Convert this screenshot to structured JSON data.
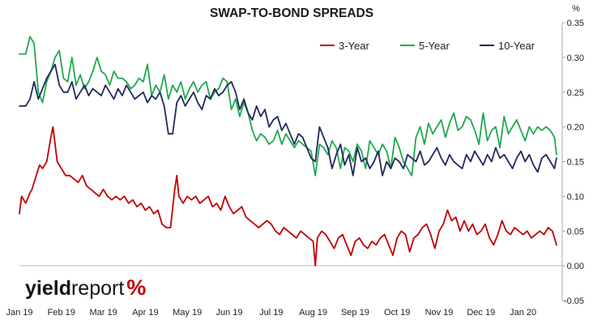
{
  "chart_data": {
    "type": "line",
    "title": "SWAP-TO-BOND SPREADS",
    "unit": "%",
    "xlabel": "",
    "ylabel": "",
    "ylim": [
      -0.05,
      0.35
    ],
    "y_ticks": [
      "0.35",
      "0.30",
      "0.25",
      "0.20",
      "0.15",
      "0.10",
      "0.05",
      "0.00",
      "-0.05"
    ],
    "x_tick_labels": [
      "Jan 19",
      "Feb 19",
      "Mar 19",
      "Apr 19",
      "May 19",
      "Jun 19",
      "Jul 19",
      "Aug 19",
      "Sep 19",
      "Oct 19",
      "Nov 19",
      "Dec 19",
      "Jan 20"
    ],
    "grid": false,
    "legend_position": "top-right",
    "x_unit": "months since Jan 2019",
    "series": [
      {
        "name": "3-Year",
        "color": "#c00000",
        "x": [
          0,
          0.05,
          0.15,
          0.25,
          0.3,
          0.4,
          0.48,
          0.55,
          0.65,
          0.75,
          0.8,
          0.9,
          1,
          1.1,
          1.2,
          1.3,
          1.4,
          1.5,
          1.6,
          1.7,
          1.8,
          1.9,
          2,
          2.1,
          2.2,
          2.3,
          2.4,
          2.5,
          2.6,
          2.7,
          2.8,
          2.9,
          3,
          3.1,
          3.2,
          3.3,
          3.4,
          3.5,
          3.6,
          3.7,
          3.75,
          3.8,
          3.9,
          4,
          4.1,
          4.2,
          4.3,
          4.4,
          4.5,
          4.6,
          4.7,
          4.8,
          4.9,
          5,
          5.1,
          5.2,
          5.3,
          5.4,
          5.5,
          5.6,
          5.7,
          5.8,
          5.9,
          6,
          6.1,
          6.2,
          6.3,
          6.4,
          6.5,
          6.6,
          6.7,
          6.8,
          6.9,
          7,
          7.05,
          7.1,
          7.2,
          7.3,
          7.4,
          7.5,
          7.6,
          7.7,
          7.8,
          7.9,
          8,
          8.1,
          8.2,
          8.3,
          8.4,
          8.5,
          8.6,
          8.7,
          8.8,
          8.9,
          9,
          9.1,
          9.2,
          9.3,
          9.4,
          9.5,
          9.6,
          9.7,
          9.8,
          9.9,
          10,
          10.1,
          10.2,
          10.3,
          10.4,
          10.5,
          10.6,
          10.7,
          10.8,
          10.9,
          11,
          11.1,
          11.2,
          11.3,
          11.4,
          11.5,
          11.6,
          11.7,
          11.8,
          11.9,
          12,
          12.1,
          12.2,
          12.3,
          12.4,
          12.5,
          12.6,
          12.7,
          12.8
        ],
        "values": [
          0.075,
          0.1,
          0.09,
          0.105,
          0.11,
          0.13,
          0.145,
          0.14,
          0.15,
          0.185,
          0.2,
          0.15,
          0.14,
          0.13,
          0.13,
          0.125,
          0.12,
          0.13,
          0.115,
          0.11,
          0.105,
          0.1,
          0.11,
          0.1,
          0.095,
          0.1,
          0.095,
          0.1,
          0.09,
          0.095,
          0.085,
          0.09,
          0.08,
          0.085,
          0.075,
          0.08,
          0.06,
          0.055,
          0.055,
          0.11,
          0.13,
          0.1,
          0.09,
          0.1,
          0.095,
          0.1,
          0.09,
          0.095,
          0.1,
          0.085,
          0.09,
          0.08,
          0.1,
          0.085,
          0.075,
          0.08,
          0.085,
          0.07,
          0.065,
          0.06,
          0.055,
          0.06,
          0.065,
          0.06,
          0.05,
          0.045,
          0.055,
          0.05,
          0.045,
          0.04,
          0.05,
          0.045,
          0.04,
          0.035,
          0,
          0.04,
          0.05,
          0.045,
          0.035,
          0.025,
          0.04,
          0.045,
          0.03,
          0.015,
          0.035,
          0.04,
          0.03,
          0.025,
          0.035,
          0.03,
          0.04,
          0.045,
          0.03,
          0.015,
          0.04,
          0.05,
          0.045,
          0.02,
          0.04,
          0.045,
          0.055,
          0.06,
          0.045,
          0.025,
          0.05,
          0.06,
          0.08,
          0.065,
          0.07,
          0.05,
          0.065,
          0.05,
          0.06,
          0.045,
          0.05,
          0.06,
          0.04,
          0.03,
          0.045,
          0.065,
          0.05,
          0.045,
          0.055,
          0.05,
          0.045,
          0.05,
          0.04,
          0.045,
          0.05,
          0.045,
          0.055,
          0.05,
          0.03
        ],
        "note": "Scale matched to axis ticks"
      },
      {
        "name": "5-Year",
        "color": "#1fa84f",
        "x": [
          0,
          0.15,
          0.25,
          0.35,
          0.45,
          0.55,
          0.65,
          0.75,
          0.85,
          0.95,
          1.05,
          1.15,
          1.25,
          1.35,
          1.45,
          1.55,
          1.65,
          1.75,
          1.85,
          1.95,
          2.05,
          2.15,
          2.25,
          2.35,
          2.45,
          2.55,
          2.65,
          2.75,
          2.85,
          2.95,
          3.05,
          3.15,
          3.25,
          3.35,
          3.45,
          3.55,
          3.65,
          3.75,
          3.85,
          3.95,
          4.05,
          4.15,
          4.25,
          4.35,
          4.45,
          4.55,
          4.65,
          4.75,
          4.85,
          4.95,
          5.05,
          5.15,
          5.25,
          5.35,
          5.45,
          5.55,
          5.65,
          5.75,
          5.85,
          5.95,
          6.05,
          6.15,
          6.25,
          6.35,
          6.45,
          6.55,
          6.65,
          6.75,
          6.85,
          6.95,
          7.05,
          7.15,
          7.25,
          7.35,
          7.45,
          7.55,
          7.65,
          7.75,
          7.85,
          7.95,
          8.05,
          8.15,
          8.25,
          8.35,
          8.45,
          8.55,
          8.65,
          8.75,
          8.85,
          8.95,
          9.05,
          9.15,
          9.25,
          9.35,
          9.45,
          9.55,
          9.65,
          9.75,
          9.85,
          9.95,
          10.05,
          10.15,
          10.25,
          10.35,
          10.45,
          10.55,
          10.65,
          10.75,
          10.85,
          10.95,
          11.05,
          11.15,
          11.25,
          11.35,
          11.45,
          11.55,
          11.65,
          11.75,
          11.85,
          11.95,
          12.05,
          12.15,
          12.25,
          12.35,
          12.45,
          12.55,
          12.65,
          12.75,
          12.8
        ],
        "values": [
          0.305,
          0.305,
          0.33,
          0.32,
          0.25,
          0.235,
          0.265,
          0.28,
          0.3,
          0.31,
          0.27,
          0.265,
          0.3,
          0.26,
          0.275,
          0.255,
          0.265,
          0.28,
          0.3,
          0.28,
          0.275,
          0.26,
          0.28,
          0.27,
          0.27,
          0.265,
          0.255,
          0.26,
          0.27,
          0.265,
          0.29,
          0.245,
          0.26,
          0.25,
          0.275,
          0.24,
          0.26,
          0.25,
          0.265,
          0.24,
          0.255,
          0.265,
          0.25,
          0.26,
          0.265,
          0.24,
          0.25,
          0.255,
          0.27,
          0.265,
          0.225,
          0.24,
          0.215,
          0.235,
          0.22,
          0.195,
          0.18,
          0.19,
          0.185,
          0.175,
          0.18,
          0.195,
          0.175,
          0.19,
          0.18,
          0.17,
          0.18,
          0.175,
          0.17,
          0.165,
          0.13,
          0.175,
          0.17,
          0.16,
          0.18,
          0.17,
          0.14,
          0.17,
          0.165,
          0.15,
          0.175,
          0.165,
          0.14,
          0.18,
          0.17,
          0.16,
          0.175,
          0.165,
          0.14,
          0.185,
          0.17,
          0.15,
          0.14,
          0.13,
          0.185,
          0.2,
          0.175,
          0.205,
          0.19,
          0.2,
          0.21,
          0.185,
          0.205,
          0.22,
          0.195,
          0.2,
          0.215,
          0.21,
          0.195,
          0.175,
          0.22,
          0.18,
          0.195,
          0.2,
          0.17,
          0.215,
          0.19,
          0.2,
          0.21,
          0.195,
          0.18,
          0.2,
          0.19,
          0.2,
          0.195,
          0.2,
          0.195,
          0.185,
          0.16
        ]
      },
      {
        "name": "10-Year",
        "color": "#1f2a5c",
        "x": [
          0,
          0.15,
          0.25,
          0.35,
          0.45,
          0.55,
          0.65,
          0.75,
          0.85,
          0.95,
          1.05,
          1.15,
          1.25,
          1.35,
          1.45,
          1.55,
          1.65,
          1.75,
          1.85,
          1.95,
          2.05,
          2.15,
          2.25,
          2.35,
          2.45,
          2.55,
          2.65,
          2.75,
          2.85,
          2.95,
          3.05,
          3.15,
          3.25,
          3.35,
          3.45,
          3.55,
          3.65,
          3.75,
          3.85,
          3.95,
          4.05,
          4.15,
          4.25,
          4.35,
          4.45,
          4.55,
          4.65,
          4.75,
          4.85,
          4.95,
          5.05,
          5.15,
          5.25,
          5.35,
          5.45,
          5.55,
          5.65,
          5.75,
          5.85,
          5.95,
          6.05,
          6.15,
          6.25,
          6.35,
          6.45,
          6.55,
          6.65,
          6.75,
          6.85,
          6.95,
          7.05,
          7.15,
          7.25,
          7.35,
          7.45,
          7.55,
          7.65,
          7.75,
          7.85,
          7.95,
          8.05,
          8.15,
          8.25,
          8.35,
          8.45,
          8.55,
          8.65,
          8.75,
          8.85,
          8.95,
          9.05,
          9.15,
          9.25,
          9.35,
          9.45,
          9.55,
          9.65,
          9.75,
          9.85,
          9.95,
          10.05,
          10.15,
          10.25,
          10.35,
          10.45,
          10.55,
          10.65,
          10.75,
          10.85,
          10.95,
          11.05,
          11.15,
          11.25,
          11.35,
          11.45,
          11.55,
          11.65,
          11.75,
          11.85,
          11.95,
          12.05,
          12.15,
          12.25,
          12.35,
          12.45,
          12.55,
          12.65,
          12.75,
          12.8
        ],
        "values": [
          0.23,
          0.23,
          0.24,
          0.265,
          0.24,
          0.255,
          0.27,
          0.28,
          0.29,
          0.26,
          0.25,
          0.25,
          0.265,
          0.24,
          0.25,
          0.26,
          0.245,
          0.255,
          0.25,
          0.245,
          0.26,
          0.25,
          0.24,
          0.255,
          0.245,
          0.26,
          0.25,
          0.24,
          0.245,
          0.25,
          0.235,
          0.245,
          0.24,
          0.25,
          0.23,
          0.19,
          0.19,
          0.235,
          0.245,
          0.23,
          0.24,
          0.25,
          0.235,
          0.225,
          0.245,
          0.24,
          0.255,
          0.245,
          0.25,
          0.26,
          0.265,
          0.25,
          0.225,
          0.24,
          0.22,
          0.21,
          0.23,
          0.215,
          0.225,
          0.2,
          0.21,
          0.215,
          0.195,
          0.205,
          0.19,
          0.175,
          0.19,
          0.185,
          0.17,
          0.155,
          0.15,
          0.2,
          0.185,
          0.17,
          0.14,
          0.16,
          0.175,
          0.145,
          0.16,
          0.13,
          0.17,
          0.15,
          0.155,
          0.14,
          0.15,
          0.165,
          0.13,
          0.15,
          0.14,
          0.155,
          0.15,
          0.14,
          0.16,
          0.155,
          0.15,
          0.165,
          0.145,
          0.15,
          0.16,
          0.17,
          0.155,
          0.145,
          0.16,
          0.15,
          0.145,
          0.14,
          0.16,
          0.15,
          0.165,
          0.155,
          0.145,
          0.16,
          0.15,
          0.17,
          0.155,
          0.16,
          0.15,
          0.14,
          0.155,
          0.165,
          0.15,
          0.16,
          0.145,
          0.135,
          0.155,
          0.16,
          0.15,
          0.14,
          0.155
        ]
      }
    ]
  },
  "logo": {
    "part_a": "yield",
    "part_b": "report",
    "part_c": "%"
  }
}
